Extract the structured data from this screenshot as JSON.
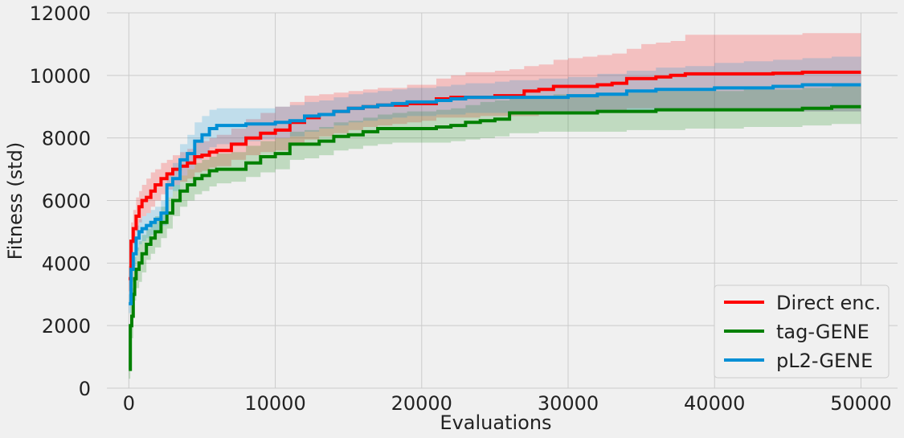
{
  "chart_data": {
    "type": "line",
    "title": "",
    "xlabel": "Evaluations",
    "ylabel": "Fitness (std)",
    "xlim": [
      -1500,
      52500
    ],
    "ylim": [
      0,
      12000
    ],
    "x_ticks": [
      0,
      10000,
      20000,
      30000,
      40000,
      50000
    ],
    "x_tick_labels": [
      "0",
      "10000",
      "20000",
      "30000",
      "40000",
      "50000"
    ],
    "y_ticks": [
      0,
      2000,
      4000,
      6000,
      8000,
      10000,
      12000
    ],
    "y_tick_labels": [
      "0",
      "2000",
      "4000",
      "6000",
      "8000",
      "10000",
      "12000"
    ],
    "grid": true,
    "background": "#f0f0f0",
    "grid_color": "#cbcbcb",
    "legend_position": "bottom-right",
    "series": [
      {
        "name": "Direct enc.",
        "color": "#ff0000",
        "x": [
          0,
          150,
          300,
          500,
          700,
          900,
          1200,
          1500,
          1800,
          2200,
          2600,
          3000,
          3500,
          4000,
          4500,
          5000,
          5500,
          6000,
          7000,
          8000,
          9000,
          10000,
          11000,
          12000,
          13000,
          14000,
          15000,
          16000,
          17000,
          18000,
          19000,
          20000,
          21000,
          22000,
          23000,
          24000,
          25000,
          26000,
          27000,
          28000,
          29000,
          30000,
          31000,
          32000,
          33000,
          34000,
          35000,
          36000,
          37000,
          38000,
          39000,
          40000,
          42000,
          44000,
          46000,
          48000,
          50000
        ],
        "y": [
          3500,
          4700,
          5100,
          5500,
          5800,
          6000,
          6100,
          6300,
          6500,
          6700,
          6850,
          7000,
          7100,
          7200,
          7400,
          7450,
          7550,
          7600,
          7800,
          8000,
          8150,
          8250,
          8500,
          8650,
          8750,
          8850,
          8950,
          9000,
          9050,
          9050,
          9100,
          9100,
          9250,
          9300,
          9300,
          9300,
          9350,
          9350,
          9500,
          9550,
          9650,
          9650,
          9650,
          9700,
          9750,
          9900,
          9900,
          9950,
          10000,
          10050,
          10050,
          10050,
          10050,
          10070,
          10100,
          10100,
          10100
        ],
        "upper": [
          3900,
          5300,
          5700,
          6100,
          6300,
          6500,
          6700,
          6900,
          7000,
          7200,
          7300,
          7450,
          7550,
          7650,
          7850,
          7900,
          8000,
          8100,
          8300,
          8600,
          8800,
          9000,
          9150,
          9350,
          9400,
          9450,
          9500,
          9550,
          9600,
          9600,
          9700,
          9700,
          9900,
          10000,
          10100,
          10100,
          10150,
          10200,
          10300,
          10350,
          10500,
          10550,
          10600,
          10650,
          10700,
          10850,
          11000,
          11050,
          11100,
          11300,
          11300,
          11300,
          11300,
          11300,
          11350,
          11350,
          11350
        ],
        "lower": [
          3100,
          4200,
          4600,
          5000,
          5300,
          5500,
          5600,
          5800,
          6000,
          6200,
          6350,
          6500,
          6600,
          6700,
          6900,
          6950,
          7050,
          7100,
          7300,
          7450,
          7550,
          7600,
          7800,
          7950,
          8050,
          8150,
          8250,
          8350,
          8400,
          8450,
          8500,
          8550,
          8650,
          8650,
          8650,
          8700,
          8700,
          8700,
          8700,
          8750,
          8800,
          8800,
          8850,
          8850,
          8850,
          8950,
          8950,
          8950,
          8950,
          8950,
          8900,
          8900,
          8900,
          8900,
          8850,
          8850,
          8850
        ]
      },
      {
        "name": "tag-GENE",
        "color": "#008000",
        "x": [
          0,
          100,
          200,
          300,
          400,
          500,
          700,
          900,
          1200,
          1500,
          1800,
          2200,
          2600,
          3000,
          3500,
          4000,
          4500,
          5000,
          5500,
          6000,
          7000,
          8000,
          9000,
          10000,
          11000,
          12000,
          13000,
          14000,
          15000,
          16000,
          17000,
          18000,
          19000,
          20000,
          21000,
          22000,
          23000,
          24000,
          25000,
          26000,
          27000,
          28000,
          29000,
          30000,
          32000,
          34000,
          36000,
          38000,
          40000,
          42000,
          44000,
          46000,
          48000,
          50000
        ],
        "y": [
          600,
          2000,
          2300,
          3000,
          3500,
          3800,
          4000,
          4300,
          4600,
          4800,
          5000,
          5300,
          5600,
          6000,
          6300,
          6500,
          6700,
          6800,
          6950,
          7000,
          7000,
          7200,
          7400,
          7500,
          7800,
          7800,
          7900,
          8050,
          8100,
          8200,
          8300,
          8300,
          8300,
          8300,
          8350,
          8400,
          8500,
          8550,
          8600,
          8800,
          8800,
          8800,
          8800,
          8800,
          8850,
          8850,
          8900,
          8900,
          8900,
          8900,
          8900,
          8950,
          9000,
          9000
        ],
        "upper": [
          1000,
          2800,
          3200,
          3800,
          4200,
          4500,
          4700,
          4900,
          5100,
          5300,
          5500,
          5800,
          6100,
          6500,
          6800,
          7000,
          7200,
          7300,
          7400,
          7500,
          7550,
          7750,
          7900,
          8000,
          8200,
          8250,
          8350,
          8500,
          8550,
          8650,
          8750,
          8800,
          8850,
          8850,
          8900,
          8950,
          9050,
          9150,
          9200,
          9350,
          9350,
          9350,
          9400,
          9400,
          9450,
          9450,
          9500,
          9500,
          9500,
          9550,
          9550,
          9600,
          9650,
          9650
        ],
        "lower": [
          300,
          1300,
          1600,
          2300,
          2800,
          3200,
          3400,
          3700,
          4100,
          4300,
          4500,
          4800,
          5100,
          5500,
          5800,
          6000,
          6200,
          6300,
          6450,
          6550,
          6600,
          6750,
          6900,
          7000,
          7300,
          7350,
          7450,
          7600,
          7650,
          7750,
          7800,
          7850,
          7850,
          7850,
          7850,
          7900,
          7950,
          8000,
          8050,
          8150,
          8150,
          8200,
          8200,
          8200,
          8200,
          8250,
          8250,
          8300,
          8300,
          8350,
          8350,
          8400,
          8450,
          8450
        ]
      },
      {
        "name": "pL2-GENE",
        "color": "#008fd5",
        "x": [
          0,
          150,
          300,
          500,
          700,
          900,
          1200,
          1500,
          1800,
          2200,
          2600,
          3000,
          3500,
          4000,
          4500,
          5000,
          5500,
          6000,
          7000,
          8000,
          9000,
          10000,
          11000,
          12000,
          13000,
          14000,
          15000,
          16000,
          17000,
          18000,
          19000,
          20000,
          21000,
          22000,
          23000,
          24000,
          25000,
          26000,
          28000,
          30000,
          32000,
          34000,
          36000,
          38000,
          40000,
          42000,
          44000,
          46000,
          48000,
          50000
        ],
        "y": [
          2700,
          3800,
          4300,
          4800,
          5000,
          5100,
          5200,
          5300,
          5400,
          5600,
          6500,
          6700,
          7300,
          7500,
          7900,
          8100,
          8300,
          8400,
          8400,
          8450,
          8450,
          8500,
          8550,
          8700,
          8750,
          8850,
          8950,
          9000,
          9050,
          9100,
          9150,
          9150,
          9200,
          9250,
          9300,
          9300,
          9300,
          9300,
          9300,
          9350,
          9400,
          9500,
          9550,
          9550,
          9600,
          9600,
          9650,
          9700,
          9700,
          9700
        ],
        "upper": [
          3000,
          4200,
          4700,
          5200,
          5400,
          5500,
          5600,
          5700,
          5800,
          6000,
          6900,
          7200,
          7800,
          8100,
          8500,
          8700,
          8900,
          8950,
          8950,
          8950,
          8950,
          9000,
          9050,
          9150,
          9200,
          9300,
          9400,
          9450,
          9500,
          9550,
          9600,
          9600,
          9650,
          9700,
          9750,
          9750,
          9800,
          9850,
          9900,
          9950,
          10050,
          10150,
          10250,
          10300,
          10400,
          10450,
          10500,
          10550,
          10600,
          10600
        ],
        "lower": [
          2400,
          3400,
          3900,
          4400,
          4600,
          4700,
          4800,
          4900,
          5000,
          5200,
          6100,
          6300,
          6800,
          7000,
          7300,
          7500,
          7700,
          7800,
          7850,
          7900,
          7950,
          8000,
          8050,
          8200,
          8300,
          8400,
          8500,
          8550,
          8600,
          8650,
          8700,
          8700,
          8750,
          8750,
          8800,
          8800,
          8800,
          8800,
          8800,
          8800,
          8800,
          8850,
          8850,
          8850,
          8850,
          8850,
          8850,
          8850,
          8850,
          8850
        ]
      }
    ]
  }
}
